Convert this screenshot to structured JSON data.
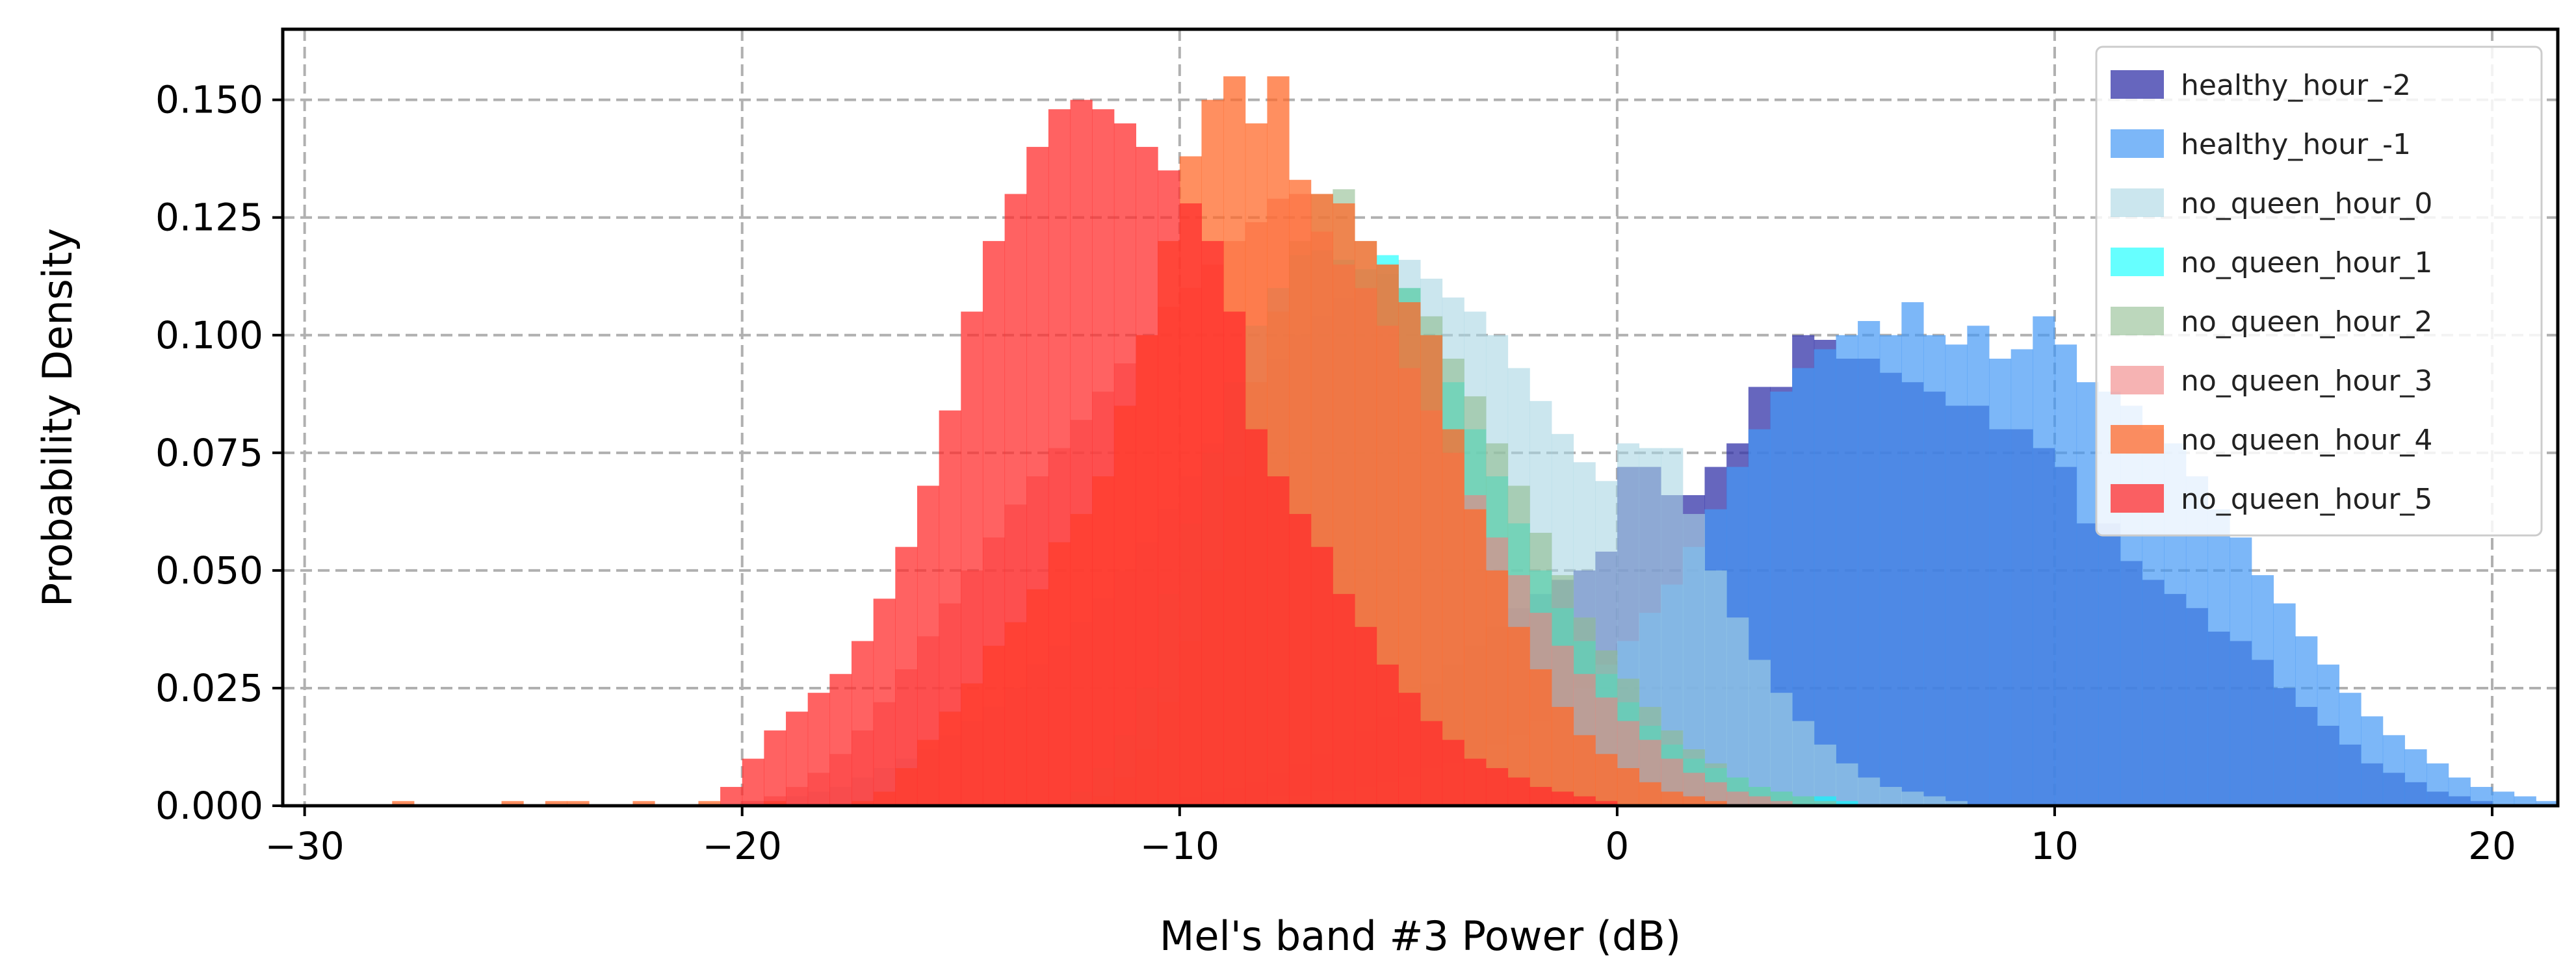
{
  "chart_data": {
    "type": "histogram",
    "title": "",
    "xlabel": "Mel's band #3 Power (dB)",
    "ylabel": "Probability Density",
    "xlim": [
      -30.5,
      21.5
    ],
    "ylim": [
      0,
      0.165
    ],
    "xticks": [
      -30,
      -20,
      -10,
      0,
      10,
      20
    ],
    "xtick_labels": [
      "−30",
      "−20",
      "−10",
      "0",
      "10",
      "20"
    ],
    "yticks": [
      0.0,
      0.025,
      0.05,
      0.075,
      0.1,
      0.125,
      0.15
    ],
    "ytick_labels": [
      "0.000",
      "0.025",
      "0.050",
      "0.075",
      "0.100",
      "0.125",
      "0.150"
    ],
    "grid": true,
    "legend_position": "top-right",
    "series": [
      {
        "name": "healthy_hour_-2",
        "color": "#3333a8",
        "opacity": 0.75,
        "bin_start": -10.5,
        "bin_width": 0.5,
        "values": [
          0.001,
          0.002,
          0.003,
          0.004,
          0.005,
          0.007,
          0.009,
          0.011,
          0.014,
          0.016,
          0.019,
          0.022,
          0.026,
          0.03,
          0.034,
          0.038,
          0.042,
          0.045,
          0.048,
          0.05,
          0.054,
          0.072,
          0.072,
          0.066,
          0.066,
          0.072,
          0.077,
          0.089,
          0.089,
          0.1,
          0.099,
          0.095,
          0.095,
          0.092,
          0.09,
          0.088,
          0.085,
          0.085,
          0.08,
          0.08,
          0.076,
          0.072,
          0.06,
          0.06,
          0.052,
          0.048,
          0.045,
          0.042,
          0.037,
          0.035,
          0.031,
          0.025,
          0.021,
          0.017,
          0.013,
          0.009,
          0.007,
          0.005,
          0.003,
          0.002,
          0.001
        ]
      },
      {
        "name": "healthy_hour_-1",
        "color": "#4499f5",
        "opacity": 0.7,
        "bin_start": -9.0,
        "bin_width": 0.5,
        "values": [
          0.001,
          0.001,
          0.002,
          0.002,
          0.003,
          0.003,
          0.004,
          0.005,
          0.006,
          0.008,
          0.009,
          0.011,
          0.013,
          0.015,
          0.018,
          0.021,
          0.025,
          0.03,
          0.035,
          0.041,
          0.047,
          0.055,
          0.063,
          0.072,
          0.08,
          0.088,
          0.093,
          0.097,
          0.1,
          0.103,
          0.1,
          0.107,
          0.1,
          0.098,
          0.102,
          0.095,
          0.097,
          0.104,
          0.098,
          0.09,
          0.088,
          0.085,
          0.08,
          0.077,
          0.07,
          0.063,
          0.057,
          0.049,
          0.043,
          0.036,
          0.03,
          0.024,
          0.019,
          0.015,
          0.012,
          0.009,
          0.006,
          0.004,
          0.003,
          0.002,
          0.001
        ]
      },
      {
        "name": "no_queen_hour_0",
        "color": "#a8d5e2",
        "opacity": 0.6,
        "bin_start": -20.0,
        "bin_width": 0.5,
        "values": [
          0.001,
          0.001,
          0.002,
          0.003,
          0.004,
          0.006,
          0.008,
          0.01,
          0.012,
          0.015,
          0.018,
          0.021,
          0.025,
          0.03,
          0.034,
          0.039,
          0.044,
          0.05,
          0.056,
          0.063,
          0.07,
          0.077,
          0.084,
          0.09,
          0.095,
          0.1,
          0.104,
          0.108,
          0.11,
          0.113,
          0.116,
          0.112,
          0.108,
          0.105,
          0.1,
          0.093,
          0.086,
          0.079,
          0.073,
          0.069,
          0.077,
          0.076,
          0.076,
          0.062,
          0.05,
          0.04,
          0.031,
          0.024,
          0.018,
          0.013,
          0.009,
          0.006,
          0.004,
          0.003,
          0.002,
          0.001
        ]
      },
      {
        "name": "no_queen_hour_1",
        "color": "#00ffff",
        "opacity": 0.6,
        "bin_start": -12.5,
        "bin_width": 0.5,
        "values": [
          0.003,
          0.008,
          0.015,
          0.025,
          0.045,
          0.06,
          0.075,
          0.09,
          0.102,
          0.11,
          0.117,
          0.118,
          0.116,
          0.114,
          0.117,
          0.11,
          0.1,
          0.09,
          0.08,
          0.07,
          0.06,
          0.05,
          0.042,
          0.035,
          0.028,
          0.022,
          0.017,
          0.013,
          0.01,
          0.008,
          0.006,
          0.004,
          0.003,
          0.002,
          0.002,
          0.001
        ]
      },
      {
        "name": "no_queen_hour_2",
        "color": "#8fbc8f",
        "opacity": 0.6,
        "bin_start": -12.0,
        "bin_width": 0.5,
        "values": [
          0.002,
          0.006,
          0.012,
          0.022,
          0.035,
          0.05,
          0.07,
          0.09,
          0.105,
          0.12,
          0.13,
          0.131,
          0.12,
          0.115,
          0.11,
          0.104,
          0.095,
          0.087,
          0.077,
          0.068,
          0.058,
          0.049,
          0.04,
          0.033,
          0.027,
          0.021,
          0.016,
          0.012,
          0.009,
          0.006,
          0.004,
          0.003,
          0.002,
          0.001
        ]
      },
      {
        "name": "no_queen_hour_3",
        "color": "#f08080",
        "opacity": 0.6,
        "bin_start": -20.0,
        "bin_width": 0.5,
        "values": [
          0.001,
          0.002,
          0.004,
          0.007,
          0.011,
          0.016,
          0.022,
          0.029,
          0.036,
          0.043,
          0.05,
          0.057,
          0.064,
          0.07,
          0.076,
          0.082,
          0.088,
          0.094,
          0.1,
          0.106,
          0.11,
          0.115,
          0.12,
          0.124,
          0.129,
          0.13,
          0.122,
          0.115,
          0.11,
          0.102,
          0.093,
          0.084,
          0.075,
          0.066,
          0.057,
          0.049,
          0.041,
          0.034,
          0.028,
          0.023,
          0.018,
          0.014,
          0.01,
          0.007,
          0.005,
          0.003,
          0.002,
          0.001
        ]
      },
      {
        "name": "no_queen_hour_4",
        "color": "#ff6a2b",
        "opacity": 0.75,
        "bin_start": -28.0,
        "bin_width": 0.5,
        "values": [
          0.001,
          0.0,
          0.0,
          0.0,
          0.0,
          0.001,
          0.0,
          0.001,
          0.001,
          0.0,
          0.0,
          0.001,
          0.0,
          0.0,
          0.001,
          0.0,
          0.0,
          0.001,
          0.0,
          0.0,
          0.0,
          0.001,
          0.003,
          0.008,
          0.014,
          0.02,
          0.026,
          0.034,
          0.039,
          0.046,
          0.056,
          0.062,
          0.07,
          0.085,
          0.1,
          0.12,
          0.138,
          0.15,
          0.155,
          0.145,
          0.155,
          0.133,
          0.13,
          0.128,
          0.12,
          0.115,
          0.107,
          0.1,
          0.08,
          0.063,
          0.05,
          0.038,
          0.029,
          0.021,
          0.015,
          0.011,
          0.008,
          0.005,
          0.003,
          0.002,
          0.001
        ]
      },
      {
        "name": "no_queen_hour_5",
        "color": "#ff2d2d",
        "opacity": 0.75,
        "bin_start": -20.5,
        "bin_width": 0.5,
        "values": [
          0.004,
          0.01,
          0.016,
          0.02,
          0.024,
          0.028,
          0.035,
          0.044,
          0.055,
          0.068,
          0.084,
          0.105,
          0.12,
          0.13,
          0.14,
          0.148,
          0.15,
          0.148,
          0.145,
          0.14,
          0.135,
          0.128,
          0.12,
          0.105,
          0.08,
          0.07,
          0.062,
          0.055,
          0.045,
          0.038,
          0.03,
          0.024,
          0.018,
          0.014,
          0.01,
          0.008,
          0.006,
          0.004,
          0.003,
          0.002,
          0.001
        ]
      }
    ]
  }
}
